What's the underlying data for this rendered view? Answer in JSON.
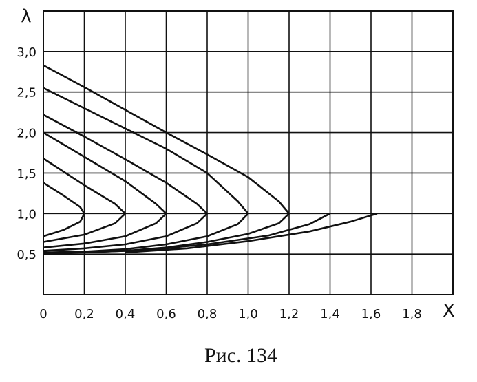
{
  "chart_data": {
    "type": "line",
    "x_label": "X",
    "y_label": "λ",
    "caption": "Рис. 134",
    "xlim": [
      0,
      2.0
    ],
    "ylim": [
      0,
      3.5
    ],
    "xticks": [
      0,
      {
        "value": 0.2,
        "label": "0,2"
      },
      {
        "value": 0.4,
        "label": "0,4"
      },
      {
        "value": 0.6,
        "label": "0,6"
      },
      {
        "value": 0.8,
        "label": "0,8"
      },
      {
        "value": 1.0,
        "label": "1,0"
      },
      {
        "value": 1.2,
        "label": "1,2"
      },
      {
        "value": 1.4,
        "label": "1,4"
      },
      {
        "value": 1.6,
        "label": "1,6"
      },
      {
        "value": 1.8,
        "label": "1,8"
      }
    ],
    "yticks": [
      {
        "value": 0.5,
        "label": "0,5"
      },
      {
        "value": 1.0,
        "label": "1,0"
      },
      {
        "value": 1.5,
        "label": "1,5"
      },
      {
        "value": 2.0,
        "label": "2,0"
      },
      {
        "value": 2.5,
        "label": "2,5"
      },
      {
        "value": 3.0,
        "label": "3,0"
      }
    ],
    "grid": true,
    "series": [
      {
        "color": "#111111",
        "x": [
          0,
          0.1,
          0.18,
          0.2,
          0.18,
          0.1,
          0
        ],
        "values": [
          1.38,
          1.22,
          1.08,
          1.0,
          0.9,
          0.8,
          0.72
        ]
      },
      {
        "color": "#111111",
        "x": [
          0,
          0.2,
          0.35,
          0.4,
          0.35,
          0.2,
          0
        ],
        "values": [
          1.68,
          1.35,
          1.12,
          1.0,
          0.88,
          0.74,
          0.65
        ]
      },
      {
        "color": "#111111",
        "x": [
          0,
          0.2,
          0.4,
          0.55,
          0.6,
          0.55,
          0.4,
          0.2,
          0
        ],
        "values": [
          2.0,
          1.7,
          1.4,
          1.12,
          1.0,
          0.88,
          0.72,
          0.63,
          0.58
        ]
      },
      {
        "color": "#111111",
        "x": [
          0,
          0.2,
          0.4,
          0.6,
          0.75,
          0.8,
          0.75,
          0.6,
          0.4,
          0.2,
          0
        ],
        "values": [
          2.22,
          1.95,
          1.67,
          1.38,
          1.12,
          1.0,
          0.88,
          0.72,
          0.62,
          0.57,
          0.54
        ]
      },
      {
        "color": "#111111",
        "x": [
          0,
          0.2,
          0.4,
          0.6,
          0.8,
          0.95,
          1.0,
          0.95,
          0.8,
          0.6,
          0.4,
          0.2,
          0
        ],
        "values": [
          2.55,
          2.3,
          2.05,
          1.8,
          1.5,
          1.15,
          1.0,
          0.87,
          0.72,
          0.62,
          0.56,
          0.53,
          0.52
        ]
      },
      {
        "color": "#111111",
        "x": [
          0,
          0.2,
          0.4,
          0.6,
          0.8,
          1.0,
          1.15,
          1.2,
          1.15,
          1.0,
          0.8,
          0.6,
          0.4,
          0.2,
          0
        ],
        "values": [
          2.83,
          2.56,
          2.28,
          2.0,
          1.73,
          1.45,
          1.15,
          1.0,
          0.88,
          0.75,
          0.65,
          0.58,
          0.54,
          0.52,
          0.51
        ]
      },
      {
        "color": "#111111",
        "x": [
          1.4,
          1.3,
          1.1,
          0.8,
          0.5,
          0.2
        ],
        "values": [
          1.0,
          0.87,
          0.73,
          0.62,
          0.55,
          0.52
        ]
      },
      {
        "color": "#111111",
        "x": [
          1.63,
          1.5,
          1.3,
          1.0,
          0.7,
          0.4
        ],
        "values": [
          1.0,
          0.9,
          0.78,
          0.66,
          0.57,
          0.52
        ]
      }
    ]
  }
}
